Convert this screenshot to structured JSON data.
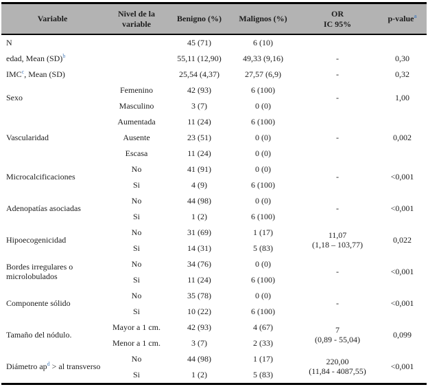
{
  "colors": {
    "header_bg": "#b3b3b3",
    "border": "#000000",
    "text": "#1c1c1c",
    "superscript_accent": "#4a7ebb"
  },
  "table": {
    "header": [
      {
        "lines": [
          "Variable"
        ],
        "sup": ""
      },
      {
        "lines": [
          "Nivel de la",
          "variable"
        ],
        "sup": ""
      },
      {
        "lines": [
          "Benigno (%)"
        ],
        "sup": ""
      },
      {
        "lines": [
          "Malignos (%)"
        ],
        "sup": ""
      },
      {
        "lines": [
          "OR",
          "IC 95%"
        ],
        "sup": ""
      },
      {
        "lines": [
          "p-value"
        ],
        "sup": "a"
      }
    ],
    "groups": [
      {
        "variable": [
          {
            "t": "N"
          }
        ],
        "levels": [
          {
            "nivel": "",
            "benigno": "45 (71)",
            "malignos": "6 (10)"
          }
        ],
        "or": [],
        "p": ""
      },
      {
        "variable": [
          {
            "t": "edad, Mean (SD)"
          },
          {
            "s": "b"
          }
        ],
        "levels": [
          {
            "nivel": "",
            "benigno": "55,11 (12,90)",
            "malignos": "49,33 (9,16)"
          }
        ],
        "or": [
          "-"
        ],
        "p": "0,30"
      },
      {
        "variable": [
          {
            "t": "IMC"
          },
          {
            "s": "c"
          },
          {
            "t": ", Mean (SD)"
          }
        ],
        "levels": [
          {
            "nivel": "",
            "benigno": "25,54 (4,37)",
            "malignos": "27,57 (6,9)"
          }
        ],
        "or": [
          "-"
        ],
        "p": "0,32"
      },
      {
        "variable": [
          {
            "t": "Sexo"
          }
        ],
        "levels": [
          {
            "nivel": "Femenino",
            "benigno": "42 (93)",
            "malignos": "6 (100)"
          },
          {
            "nivel": "Masculino",
            "benigno": "3 (7)",
            "malignos": "0 (0)"
          }
        ],
        "or": [
          "-"
        ],
        "p": "1,00"
      },
      {
        "variable": [
          {
            "t": "Vascularidad"
          }
        ],
        "levels": [
          {
            "nivel": "Aumentada",
            "benigno": "11 (24)",
            "malignos": "6 (100)"
          },
          {
            "nivel": "Ausente",
            "benigno": "23 (51)",
            "malignos": "0 (0)"
          },
          {
            "nivel": "Escasa",
            "benigno": "11 (24)",
            "malignos": "0 (0)"
          }
        ],
        "or": [
          "-"
        ],
        "p": "0,002"
      },
      {
        "variable": [
          {
            "t": "Microcalcificaciones"
          }
        ],
        "levels": [
          {
            "nivel": "No",
            "benigno": "41 (91)",
            "malignos": "0 (0)"
          },
          {
            "nivel": "Si",
            "benigno": "4 (9)",
            "malignos": "6 (100)"
          }
        ],
        "or": [
          "-"
        ],
        "p": "<0,001"
      },
      {
        "variable": [
          {
            "t": "Adenopatías asociadas"
          }
        ],
        "levels": [
          {
            "nivel": "No",
            "benigno": "44 (98)",
            "malignos": "0 (0)"
          },
          {
            "nivel": "Si",
            "benigno": "1 (2)",
            "malignos": "6 (100)"
          }
        ],
        "or": [
          "-"
        ],
        "p": "<0,001"
      },
      {
        "variable": [
          {
            "t": "Hipoecogenicidad"
          }
        ],
        "levels": [
          {
            "nivel": "No",
            "benigno": "31 (69)",
            "malignos": "1 (17)"
          },
          {
            "nivel": "Si",
            "benigno": "14 (31)",
            "malignos": "5 (83)"
          }
        ],
        "or": [
          "11,07",
          "(1,18 – 103,77)"
        ],
        "p": "0,022"
      },
      {
        "variable": [
          {
            "t": "Bordes irregulares o microlobulados"
          }
        ],
        "levels": [
          {
            "nivel": "No",
            "benigno": "34 (76)",
            "malignos": "0 (0)"
          },
          {
            "nivel": "Si",
            "benigno": "11 (24)",
            "malignos": "6 (100)"
          }
        ],
        "or": [
          "-"
        ],
        "p": "<0,001"
      },
      {
        "variable": [
          {
            "t": "Componente sólido"
          }
        ],
        "levels": [
          {
            "nivel": "No",
            "benigno": "35 (78)",
            "malignos": "0 (0)"
          },
          {
            "nivel": "Si",
            "benigno": "10 (22)",
            "malignos": "6 (100)"
          }
        ],
        "or": [
          "-"
        ],
        "p": "<0,001"
      },
      {
        "variable": [
          {
            "t": "Tamaño del nódulo."
          }
        ],
        "levels": [
          {
            "nivel": "Mayor a 1 cm.",
            "benigno": "42 (93)",
            "malignos": "4 (67)"
          },
          {
            "nivel": "Menor a 1 cm.",
            "benigno": "3 (7)",
            "malignos": "2 (33)"
          }
        ],
        "or": [
          "7",
          "(0,89 - 55,04)"
        ],
        "p": "0,099"
      },
      {
        "variable": [
          {
            "t": "Diámetro ap"
          },
          {
            "s": "d"
          },
          {
            "t": " > al transverso"
          }
        ],
        "levels": [
          {
            "nivel": "No",
            "benigno": "44 (98)",
            "malignos": "1 (17)"
          },
          {
            "nivel": "Si",
            "benigno": "1 (2)",
            "malignos": "5 (83)"
          }
        ],
        "or": [
          "220,00",
          "(11,84 - 4087,55)"
        ],
        "p": "<0,001"
      }
    ]
  }
}
